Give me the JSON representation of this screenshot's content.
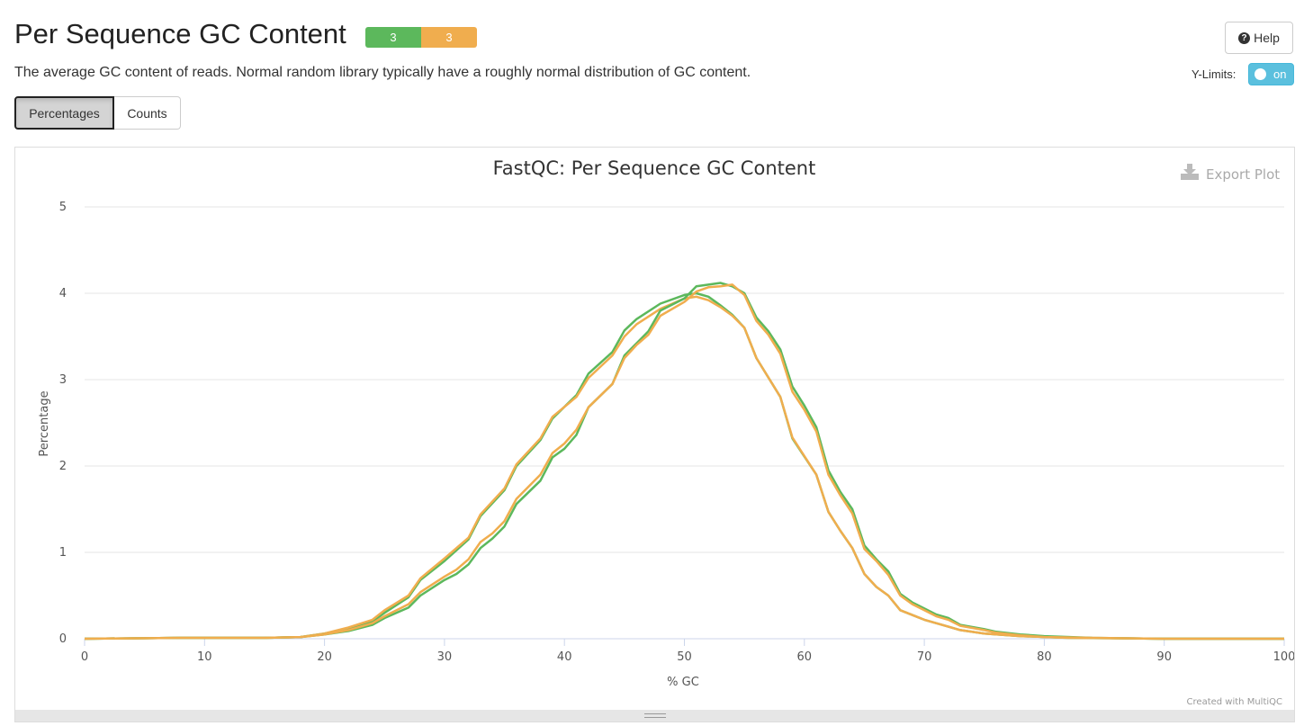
{
  "header": {
    "title": "Per Sequence GC Content",
    "badges": [
      {
        "count": "3",
        "status": "pass",
        "color": "#5cb85c"
      },
      {
        "count": "3",
        "status": "warn",
        "color": "#f0ad4e"
      }
    ],
    "help_label": "Help",
    "description": "The average GC content of reads. Normal random library typically have a roughly normal distribution of GC content."
  },
  "controls": {
    "ylimits_label": "Y-Limits:",
    "ylimits_toggle": "on",
    "tabs": [
      "Percentages",
      "Counts"
    ],
    "active_tab": "Percentages"
  },
  "plot": {
    "export_label": "Export Plot",
    "credit": "Created with MultiQC"
  },
  "chart_data": {
    "type": "line",
    "title": "FastQC: Per Sequence GC Content",
    "xlabel": "% GC",
    "ylabel": "Percentage",
    "xlim": [
      0,
      100
    ],
    "ylim": [
      0,
      5
    ],
    "xticks": [
      0,
      10,
      20,
      30,
      40,
      50,
      60,
      70,
      80,
      90,
      100
    ],
    "yticks": [
      0,
      1,
      2,
      3,
      4,
      5
    ],
    "grid": true,
    "series": [
      {
        "color": "#5cb85c",
        "points": [
          [
            0,
            0
          ],
          [
            8,
            0.01
          ],
          [
            15,
            0.01
          ],
          [
            18,
            0.02
          ],
          [
            20,
            0.06
          ],
          [
            22,
            0.12
          ],
          [
            24,
            0.2
          ],
          [
            25,
            0.3
          ],
          [
            27,
            0.48
          ],
          [
            28,
            0.68
          ],
          [
            30,
            0.9
          ],
          [
            32,
            1.15
          ],
          [
            33,
            1.42
          ],
          [
            35,
            1.72
          ],
          [
            36,
            2.0
          ],
          [
            38,
            2.3
          ],
          [
            39,
            2.55
          ],
          [
            41,
            2.82
          ],
          [
            42,
            3.07
          ],
          [
            44,
            3.32
          ],
          [
            45,
            3.57
          ],
          [
            46,
            3.7
          ],
          [
            48,
            3.88
          ],
          [
            50,
            3.98
          ],
          [
            51,
            4.0
          ],
          [
            52,
            3.96
          ],
          [
            53,
            3.86
          ],
          [
            54,
            3.75
          ],
          [
            55,
            3.6
          ],
          [
            56,
            3.25
          ],
          [
            58,
            2.8
          ],
          [
            59,
            2.32
          ],
          [
            61,
            1.9
          ],
          [
            62,
            1.47
          ],
          [
            63,
            1.25
          ],
          [
            64,
            1.05
          ],
          [
            65,
            0.75
          ],
          [
            66,
            0.6
          ],
          [
            67,
            0.5
          ],
          [
            68,
            0.33
          ],
          [
            70,
            0.22
          ],
          [
            72,
            0.14
          ],
          [
            73,
            0.1
          ],
          [
            75,
            0.06
          ],
          [
            78,
            0.03
          ],
          [
            82,
            0.01
          ],
          [
            90,
            0
          ],
          [
            100,
            0
          ]
        ]
      },
      {
        "color": "#f0ad4e",
        "points": [
          [
            0,
            0
          ],
          [
            8,
            0.01
          ],
          [
            15,
            0.01
          ],
          [
            18,
            0.02
          ],
          [
            20,
            0.06
          ],
          [
            22,
            0.13
          ],
          [
            24,
            0.22
          ],
          [
            25,
            0.33
          ],
          [
            27,
            0.5
          ],
          [
            28,
            0.7
          ],
          [
            30,
            0.93
          ],
          [
            32,
            1.17
          ],
          [
            33,
            1.44
          ],
          [
            35,
            1.74
          ],
          [
            36,
            2.02
          ],
          [
            38,
            2.32
          ],
          [
            39,
            2.57
          ],
          [
            41,
            2.8
          ],
          [
            42,
            3.02
          ],
          [
            44,
            3.28
          ],
          [
            45,
            3.5
          ],
          [
            46,
            3.64
          ],
          [
            48,
            3.82
          ],
          [
            50,
            3.94
          ],
          [
            51,
            3.96
          ],
          [
            52,
            3.92
          ],
          [
            53,
            3.84
          ],
          [
            54,
            3.74
          ],
          [
            55,
            3.6
          ],
          [
            56,
            3.25
          ],
          [
            58,
            2.8
          ],
          [
            59,
            2.33
          ],
          [
            61,
            1.9
          ],
          [
            62,
            1.47
          ],
          [
            63,
            1.25
          ],
          [
            64,
            1.05
          ],
          [
            65,
            0.75
          ],
          [
            66,
            0.6
          ],
          [
            67,
            0.5
          ],
          [
            68,
            0.33
          ],
          [
            70,
            0.22
          ],
          [
            72,
            0.14
          ],
          [
            73,
            0.1
          ],
          [
            75,
            0.06
          ],
          [
            78,
            0.03
          ],
          [
            82,
            0.01
          ],
          [
            90,
            0
          ],
          [
            100,
            0
          ]
        ]
      },
      {
        "color": "#5cb85c",
        "points": [
          [
            0,
            0
          ],
          [
            8,
            0.01
          ],
          [
            15,
            0.01
          ],
          [
            18,
            0.02
          ],
          [
            20,
            0.05
          ],
          [
            22,
            0.09
          ],
          [
            24,
            0.16
          ],
          [
            25,
            0.24
          ],
          [
            27,
            0.36
          ],
          [
            28,
            0.5
          ],
          [
            30,
            0.68
          ],
          [
            31,
            0.75
          ],
          [
            32,
            0.86
          ],
          [
            33,
            1.05
          ],
          [
            34,
            1.16
          ],
          [
            35,
            1.3
          ],
          [
            36,
            1.56
          ],
          [
            38,
            1.83
          ],
          [
            39,
            2.1
          ],
          [
            40,
            2.2
          ],
          [
            41,
            2.36
          ],
          [
            42,
            2.68
          ],
          [
            44,
            2.95
          ],
          [
            45,
            3.28
          ],
          [
            46,
            3.42
          ],
          [
            47,
            3.56
          ],
          [
            48,
            3.8
          ],
          [
            50,
            3.94
          ],
          [
            51,
            4.08
          ],
          [
            52,
            4.1
          ],
          [
            53,
            4.12
          ],
          [
            54,
            4.08
          ],
          [
            55,
            4.0
          ],
          [
            56,
            3.72
          ],
          [
            57,
            3.56
          ],
          [
            58,
            3.35
          ],
          [
            59,
            2.92
          ],
          [
            60,
            2.7
          ],
          [
            61,
            2.45
          ],
          [
            62,
            1.95
          ],
          [
            63,
            1.7
          ],
          [
            64,
            1.5
          ],
          [
            65,
            1.08
          ],
          [
            66,
            0.92
          ],
          [
            67,
            0.78
          ],
          [
            68,
            0.52
          ],
          [
            69,
            0.42
          ],
          [
            70,
            0.35
          ],
          [
            71,
            0.28
          ],
          [
            72,
            0.24
          ],
          [
            73,
            0.16
          ],
          [
            75,
            0.11
          ],
          [
            76,
            0.08
          ],
          [
            78,
            0.05
          ],
          [
            80,
            0.03
          ],
          [
            84,
            0.01
          ],
          [
            90,
            0
          ],
          [
            100,
            0
          ]
        ]
      },
      {
        "color": "#f0ad4e",
        "points": [
          [
            0,
            0
          ],
          [
            8,
            0.01
          ],
          [
            15,
            0.01
          ],
          [
            18,
            0.02
          ],
          [
            20,
            0.05
          ],
          [
            22,
            0.1
          ],
          [
            24,
            0.18
          ],
          [
            25,
            0.26
          ],
          [
            27,
            0.4
          ],
          [
            28,
            0.54
          ],
          [
            30,
            0.72
          ],
          [
            31,
            0.8
          ],
          [
            32,
            0.92
          ],
          [
            33,
            1.12
          ],
          [
            34,
            1.22
          ],
          [
            35,
            1.36
          ],
          [
            36,
            1.62
          ],
          [
            38,
            1.9
          ],
          [
            39,
            2.15
          ],
          [
            40,
            2.26
          ],
          [
            41,
            2.42
          ],
          [
            42,
            2.68
          ],
          [
            44,
            2.95
          ],
          [
            45,
            3.25
          ],
          [
            46,
            3.4
          ],
          [
            47,
            3.52
          ],
          [
            48,
            3.74
          ],
          [
            50,
            3.9
          ],
          [
            51,
            4.02
          ],
          [
            52,
            4.07
          ],
          [
            53,
            4.08
          ],
          [
            54,
            4.1
          ],
          [
            55,
            3.98
          ],
          [
            56,
            3.68
          ],
          [
            57,
            3.52
          ],
          [
            58,
            3.3
          ],
          [
            59,
            2.86
          ],
          [
            60,
            2.65
          ],
          [
            61,
            2.4
          ],
          [
            62,
            1.9
          ],
          [
            63,
            1.66
          ],
          [
            64,
            1.45
          ],
          [
            65,
            1.04
          ],
          [
            66,
            0.9
          ],
          [
            67,
            0.74
          ],
          [
            68,
            0.5
          ],
          [
            69,
            0.4
          ],
          [
            70,
            0.33
          ],
          [
            71,
            0.26
          ],
          [
            72,
            0.22
          ],
          [
            73,
            0.15
          ],
          [
            75,
            0.1
          ],
          [
            76,
            0.07
          ],
          [
            78,
            0.04
          ],
          [
            80,
            0.02
          ],
          [
            84,
            0.01
          ],
          [
            90,
            0
          ],
          [
            100,
            0
          ]
        ]
      }
    ]
  }
}
